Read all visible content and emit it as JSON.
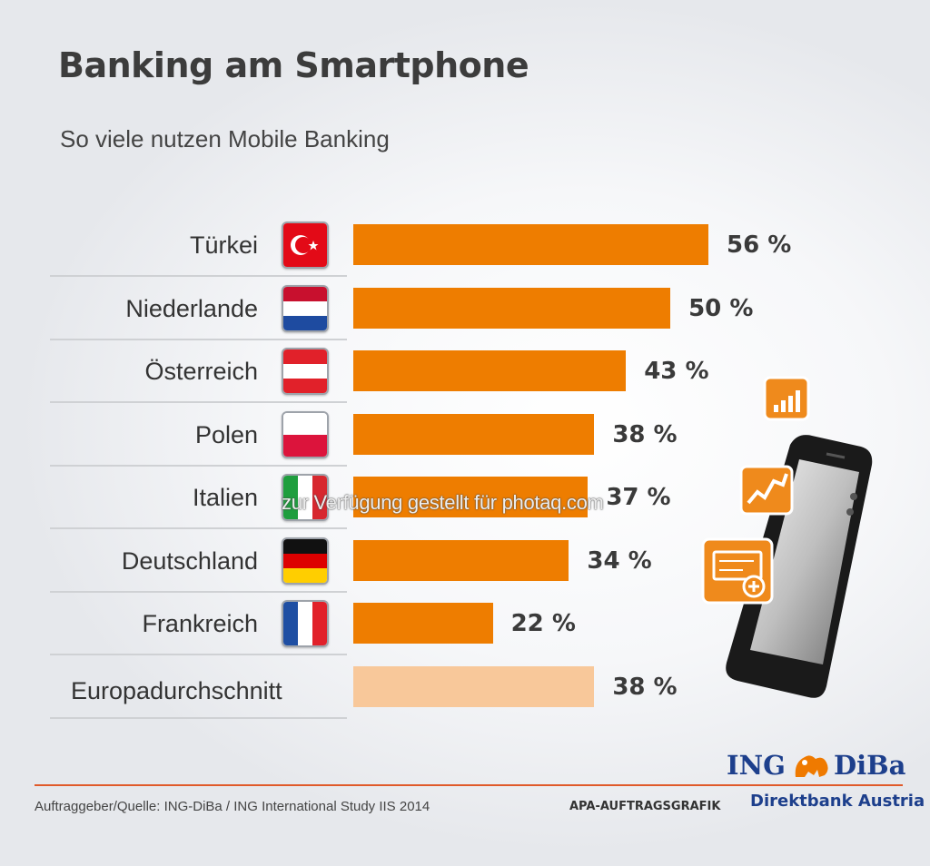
{
  "header": {
    "title": "Banking am Smartphone",
    "subtitle": "So viele nutzen Mobile Banking"
  },
  "chart_data": {
    "type": "bar",
    "orientation": "horizontal",
    "title": "Banking am Smartphone",
    "subtitle": "So viele nutzen Mobile Banking",
    "categories": [
      "Türkei",
      "Niederlande",
      "Österreich",
      "Polen",
      "Italien",
      "Deutschland",
      "Frankreich",
      "Europadurchschnitt"
    ],
    "values": [
      56,
      50,
      43,
      38,
      37,
      34,
      22,
      38
    ],
    "value_labels": [
      "56 %",
      "50 %",
      "43 %",
      "38 %",
      "37 %",
      "34 %",
      "22 %",
      "38 %"
    ],
    "flags": [
      "turkey-flag-icon",
      "netherlands-flag-icon",
      "austria-flag-icon",
      "poland-flag-icon",
      "italy-flag-icon",
      "germany-flag-icon",
      "france-flag-icon",
      ""
    ],
    "bar_color": "#ee7d00",
    "average_bar_color": "#f8c89a",
    "unit": "%",
    "xlim": [
      0,
      56
    ],
    "grid": false,
    "legend": "none"
  },
  "watermark": "zur Verfügung gestellt für photaq.com",
  "footer": {
    "source": "Auftraggeber/Quelle: ING-DiBa / ING International Study IIS 2014",
    "apa": "APA-AUFTRAGSGRAFIK",
    "brand_left": "ING",
    "brand_right": "DiBa",
    "brand_sub": "Direktbank Austria",
    "accent_color": "#e05a2a",
    "brand_color": "#1d3f8c"
  }
}
